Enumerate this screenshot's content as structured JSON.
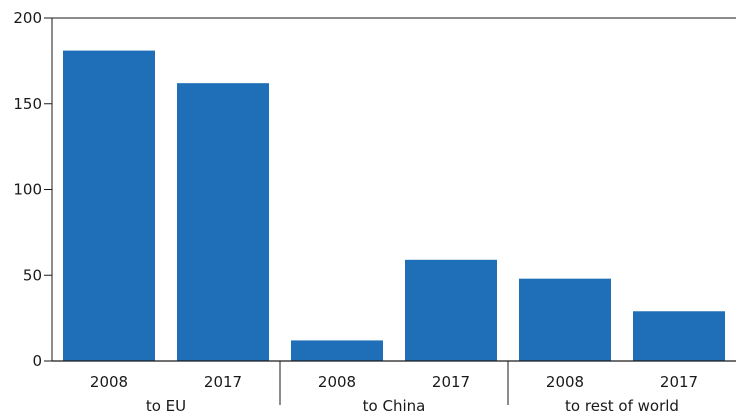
{
  "chart_data": {
    "type": "bar",
    "groups": [
      {
        "label": "to EU",
        "categories": [
          "2008",
          "2017"
        ],
        "values": [
          181,
          162
        ]
      },
      {
        "label": "to China",
        "categories": [
          "2008",
          "2017"
        ],
        "values": [
          12,
          59
        ]
      },
      {
        "label": "to rest of world",
        "categories": [
          "2008",
          "2017"
        ],
        "values": [
          48,
          29
        ]
      }
    ],
    "ylim": [
      0,
      200
    ],
    "yticks": [
      0,
      50,
      100,
      150,
      200
    ],
    "grid": false,
    "bar_color": "#1f6fb8",
    "axis_color": "#1a1a1a"
  }
}
